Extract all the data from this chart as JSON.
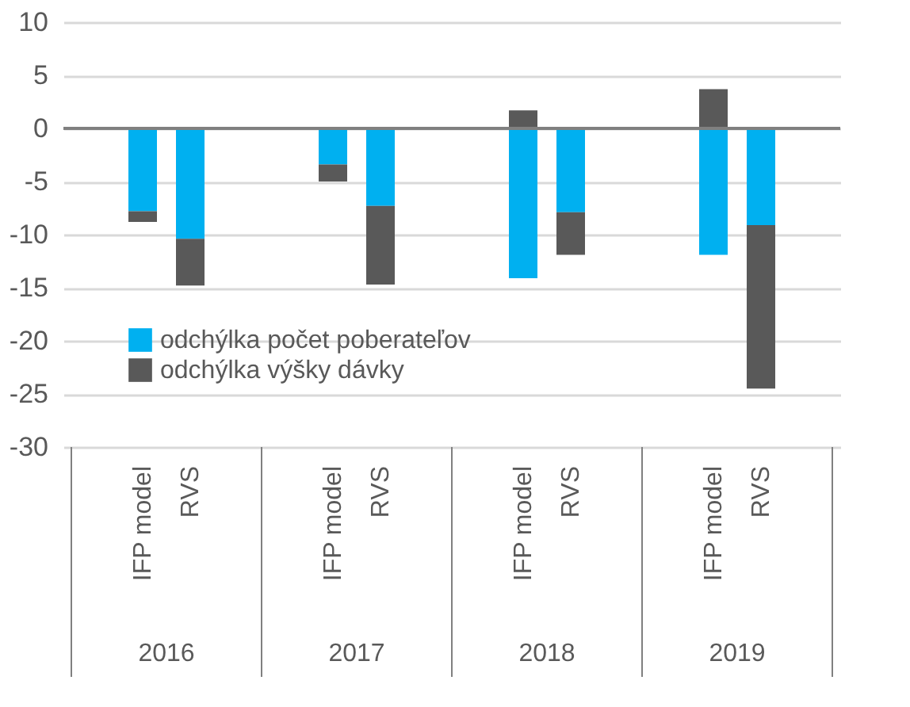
{
  "chart_data": {
    "type": "bar",
    "stacked": true,
    "categories": [
      "IFP model",
      "RVS",
      "IFP model",
      "RVS",
      "IFP model",
      "RVS",
      "IFP model",
      "RVS"
    ],
    "annotations": [
      "2016",
      "2017",
      "2018",
      "2019"
    ],
    "series": [
      {
        "name": "odchýlka počet poberateľov",
        "color": "#00b0f0",
        "values": [
          -7.8,
          -10.4,
          -3.4,
          -7.3,
          -14.1,
          -7.9,
          -11.9,
          -9.1
        ]
      },
      {
        "name": "odchýlka výšky dávky",
        "color": "#595959",
        "values": [
          -1.0,
          -4.4,
          -1.6,
          -7.4,
          1.7,
          -4.0,
          3.7,
          -15.4
        ]
      }
    ],
    "ylim": [
      -30,
      10
    ],
    "yticks": [
      -30,
      -25,
      -20,
      -15,
      -10,
      -5,
      0,
      5,
      10
    ],
    "grid": "y",
    "legend": "bottom left"
  }
}
